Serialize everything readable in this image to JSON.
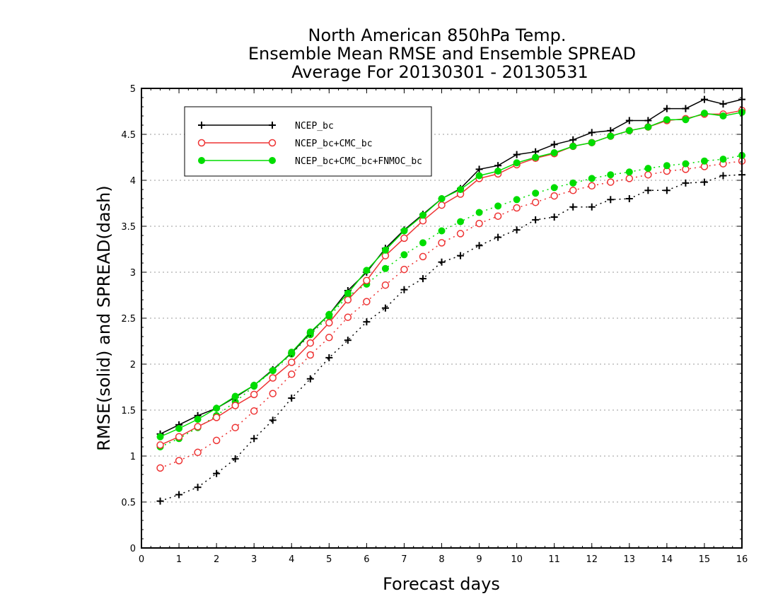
{
  "chart_data": {
    "type": "line",
    "title_lines": [
      "North American 850hPa Temp.",
      "Ensemble Mean RMSE and Ensemble SPREAD",
      "Average For 20130301 - 20130531"
    ],
    "xlabel": "Forecast days",
    "ylabel": "RMSE(solid) and SPREAD(dash)",
    "xlim": [
      0,
      16
    ],
    "ylim": [
      0,
      5
    ],
    "x_ticks": [
      "0",
      "1",
      "2",
      "3",
      "4",
      "5",
      "6",
      "7",
      "8",
      "9",
      "10",
      "11",
      "12",
      "13",
      "14",
      "15",
      "16"
    ],
    "y_ticks": [
      "0",
      "0.5",
      "1",
      "1.5",
      "2",
      "2.5",
      "3",
      "3.5",
      "4",
      "4.5",
      "5"
    ],
    "grid": "horizontal dotted",
    "legend_position": "upper-left",
    "x": [
      0.5,
      1,
      1.5,
      2,
      2.5,
      3,
      3.5,
      4,
      4.5,
      5,
      5.5,
      6,
      6.5,
      7,
      7.5,
      8,
      8.5,
      9,
      9.5,
      10,
      10.5,
      11,
      11.5,
      12,
      12.5,
      13,
      13.5,
      14,
      14.5,
      15,
      15.5,
      16
    ],
    "series": [
      {
        "name": "NCEP_bc",
        "color": "#000000",
        "marker": "plus",
        "rmse": [
          1.24,
          1.34,
          1.44,
          1.52,
          1.64,
          1.77,
          1.94,
          2.12,
          2.34,
          2.54,
          2.8,
          3.0,
          3.26,
          3.46,
          3.63,
          3.8,
          3.91,
          4.12,
          4.16,
          4.28,
          4.31,
          4.39,
          4.44,
          4.52,
          4.54,
          4.65,
          4.65,
          4.78,
          4.78,
          4.88,
          4.83,
          4.88
        ],
        "spread": [
          0.51,
          0.58,
          0.66,
          0.81,
          0.97,
          1.19,
          1.39,
          1.63,
          1.84,
          2.07,
          2.26,
          2.46,
          2.61,
          2.81,
          2.93,
          3.11,
          3.18,
          3.29,
          3.38,
          3.46,
          3.57,
          3.6,
          3.71,
          3.71,
          3.79,
          3.8,
          3.89,
          3.89,
          3.97,
          3.98,
          4.05,
          4.06
        ]
      },
      {
        "name": "NCEP_bc+CMC_bc",
        "color": "#ee3333",
        "marker": "open-circle",
        "rmse": [
          1.12,
          1.21,
          1.32,
          1.42,
          1.55,
          1.67,
          1.85,
          2.02,
          2.23,
          2.45,
          2.7,
          2.91,
          3.18,
          3.37,
          3.56,
          3.73,
          3.85,
          4.02,
          4.07,
          4.17,
          4.24,
          4.29,
          4.37,
          4.41,
          4.48,
          4.54,
          4.58,
          4.65,
          4.67,
          4.72,
          4.72,
          4.76
        ],
        "spread": [
          0.87,
          0.95,
          1.04,
          1.17,
          1.31,
          1.49,
          1.68,
          1.89,
          2.1,
          2.29,
          2.51,
          2.68,
          2.86,
          3.03,
          3.17,
          3.32,
          3.42,
          3.53,
          3.61,
          3.7,
          3.76,
          3.83,
          3.89,
          3.94,
          3.98,
          4.02,
          4.06,
          4.1,
          4.12,
          4.15,
          4.18,
          4.21
        ]
      },
      {
        "name": "NCEP_bc+CMC_bc+FNMOC_bc",
        "color": "#00dd00",
        "marker": "filled-circle",
        "rmse": [
          1.21,
          1.3,
          1.4,
          1.52,
          1.65,
          1.77,
          1.93,
          2.13,
          2.35,
          2.54,
          2.77,
          3.02,
          3.24,
          3.45,
          3.62,
          3.8,
          3.9,
          4.05,
          4.1,
          4.19,
          4.25,
          4.3,
          4.37,
          4.41,
          4.48,
          4.54,
          4.58,
          4.66,
          4.66,
          4.73,
          4.7,
          4.74
        ],
        "spread": [
          1.1,
          1.19,
          1.31,
          1.44,
          1.59,
          1.76,
          1.93,
          2.11,
          2.32,
          2.52,
          2.74,
          2.87,
          3.04,
          3.19,
          3.32,
          3.45,
          3.55,
          3.65,
          3.72,
          3.79,
          3.86,
          3.92,
          3.97,
          4.02,
          4.06,
          4.09,
          4.13,
          4.16,
          4.18,
          4.21,
          4.23,
          4.27
        ]
      }
    ]
  }
}
